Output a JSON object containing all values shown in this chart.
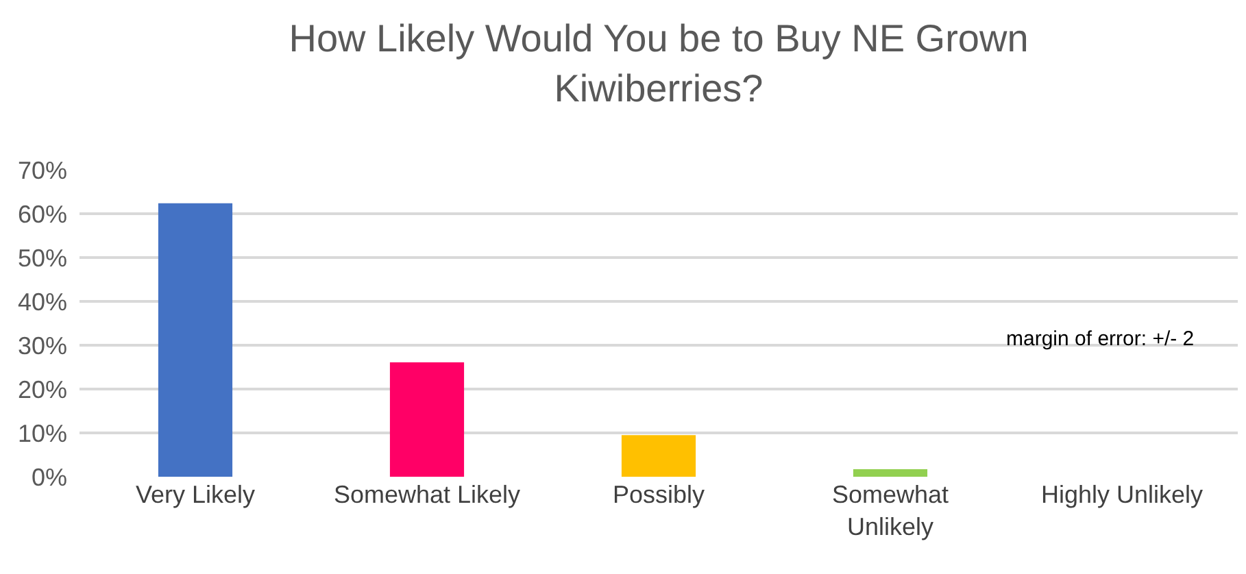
{
  "chart_data": {
    "type": "bar",
    "title": "How Likely Would You be to Buy NE Grown Kiwiberries?",
    "categories": [
      "Very Likely",
      "Somewhat Likely",
      "Possibly",
      "Somewhat Unlikely",
      "Highly Unlikely"
    ],
    "values": [
      0.624,
      0.261,
      0.095,
      0.017,
      0
    ],
    "colors": [
      "#4472c4",
      "#ff0066",
      "#ffc000",
      "#92d050",
      "#a5a5a5"
    ],
    "ylim": [
      0,
      0.7
    ],
    "yticks": [
      {
        "value": 0,
        "label": "0%"
      },
      {
        "value": 0.1,
        "label": "10%"
      },
      {
        "value": 0.2,
        "label": "20%"
      },
      {
        "value": 0.3,
        "label": "30%"
      },
      {
        "value": 0.4,
        "label": "40%"
      },
      {
        "value": 0.5,
        "label": "50%"
      },
      {
        "value": 0.6,
        "label": "60%"
      },
      {
        "value": 0.7,
        "label": "70%"
      }
    ],
    "grid": "y",
    "annotations": [
      "margin of error: +/- 2"
    ]
  }
}
